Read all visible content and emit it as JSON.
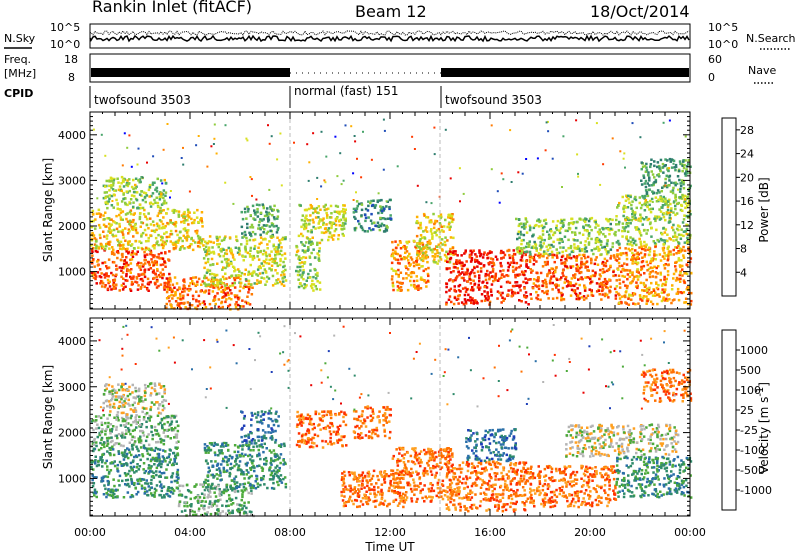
{
  "header": {
    "station": "Rankin Inlet (fitACF)",
    "beam": "Beam 12",
    "date": "18/Oct/2014"
  },
  "top_panels": {
    "nsky_label": "N.Sky",
    "nsearch_label": "N.Search",
    "count_ticks": [
      "10^5",
      "10^0"
    ],
    "freq_label": "Freq.",
    "freq_unit": "[MHz]",
    "freq_ticks": [
      "18",
      "8"
    ],
    "nave_label": "Nave",
    "nave_ticks": [
      "60",
      "0"
    ],
    "cpid_label": "CPID",
    "cpid_segments": [
      {
        "label": "twofsound 3503",
        "start": 0,
        "end": 8
      },
      {
        "label": "normal (fast) 151",
        "start": 8,
        "end": 14
      },
      {
        "label": "twofsound 3503",
        "start": 14,
        "end": 24
      }
    ]
  },
  "chart_data": [
    {
      "type": "heatmap",
      "name": "power",
      "ylabel": "Slant Range [km]",
      "xlabel": "",
      "x_range_hours": [
        0,
        24
      ],
      "ylim": [
        180,
        4500
      ],
      "y_ticks": [
        "1000",
        "2000",
        "3000",
        "4000"
      ],
      "colorbar": {
        "label": "Power [dB]",
        "ticks": [
          "4",
          "8",
          "12",
          "16",
          "20",
          "24",
          "28"
        ],
        "range": [
          0,
          30
        ],
        "colors": [
          "#0000ff",
          "#1f4db8",
          "#2e7d6e",
          "#48a56a",
          "#8fcc3c",
          "#d8e020",
          "#ffb000",
          "#ff7a00",
          "#ff3a00",
          "#e80000"
        ]
      },
      "regions": [
        {
          "t0": 0.0,
          "t1": 3.2,
          "r0": 600,
          "r1": 1500,
          "v": 26
        },
        {
          "t0": 0.0,
          "t1": 4.5,
          "r0": 1500,
          "r1": 2400,
          "v": 18
        },
        {
          "t0": 0.5,
          "t1": 3.0,
          "r0": 2400,
          "r1": 3100,
          "v": 14
        },
        {
          "t0": 3.0,
          "t1": 6.5,
          "r0": 200,
          "r1": 900,
          "v": 24
        },
        {
          "t0": 4.5,
          "t1": 7.8,
          "r0": 700,
          "r1": 1800,
          "v": 16
        },
        {
          "t0": 6.0,
          "t1": 7.5,
          "r0": 1800,
          "r1": 2500,
          "v": 10
        },
        {
          "t0": 8.2,
          "t1": 9.2,
          "r0": 600,
          "r1": 1700,
          "v": 14
        },
        {
          "t0": 8.3,
          "t1": 10.2,
          "r0": 1700,
          "r1": 2500,
          "v": 16
        },
        {
          "t0": 10.5,
          "t1": 12.0,
          "r0": 1900,
          "r1": 2600,
          "v": 8
        },
        {
          "t0": 12.0,
          "t1": 13.5,
          "r0": 600,
          "r1": 1700,
          "v": 22
        },
        {
          "t0": 13.0,
          "t1": 14.5,
          "r0": 1200,
          "r1": 2300,
          "v": 18
        },
        {
          "t0": 14.2,
          "t1": 17.5,
          "r0": 300,
          "r1": 1500,
          "v": 28
        },
        {
          "t0": 17.5,
          "t1": 21.0,
          "r0": 400,
          "r1": 1400,
          "v": 25
        },
        {
          "t0": 17.0,
          "t1": 21.0,
          "r0": 1400,
          "r1": 2200,
          "v": 13
        },
        {
          "t0": 21.0,
          "t1": 24.0,
          "r0": 300,
          "r1": 1600,
          "v": 22
        },
        {
          "t0": 21.0,
          "t1": 24.0,
          "r0": 1600,
          "r1": 2700,
          "v": 14
        },
        {
          "t0": 22.0,
          "t1": 24.0,
          "r0": 2700,
          "r1": 3500,
          "v": 10
        }
      ]
    },
    {
      "type": "heatmap",
      "name": "velocity",
      "ylabel": "Slant Range [km]",
      "xlabel": "Time UT",
      "x_range_hours": [
        0,
        24
      ],
      "x_ticks": [
        "00:00",
        "04:00",
        "08:00",
        "12:00",
        "16:00",
        "20:00",
        "00:00"
      ],
      "ylim": [
        180,
        4500
      ],
      "y_ticks": [
        "1000",
        "2000",
        "3000",
        "4000"
      ],
      "colorbar": {
        "label": "Velocity [m s",
        "label_exp": "-1",
        "label_close": "]",
        "ticks": [
          "1000",
          "500",
          "100",
          "25",
          "-25",
          "-100",
          "-500",
          "-1000"
        ],
        "colors": [
          "#1f3fb8",
          "#2a6fa8",
          "#2e8a6a",
          "#4caa3a",
          "#b4b4b4",
          "#ffa020",
          "#ff7000",
          "#ff3000",
          "#e80000"
        ]
      },
      "regions": [
        {
          "t0": 0.0,
          "t1": 3.5,
          "r0": 600,
          "r1": 1700,
          "v": 2
        },
        {
          "t0": 0.0,
          "t1": 3.5,
          "r0": 1700,
          "r1": 2400,
          "v": 3
        },
        {
          "t0": 0.5,
          "t1": 3.0,
          "r0": 2400,
          "r1": 3100,
          "v": 4
        },
        {
          "t0": 3.5,
          "t1": 6.5,
          "r0": 200,
          "r1": 900,
          "v": 3
        },
        {
          "t0": 4.5,
          "t1": 7.8,
          "r0": 800,
          "r1": 1800,
          "v": 2
        },
        {
          "t0": 6.0,
          "t1": 7.5,
          "r0": 1800,
          "r1": 2500,
          "v": 1
        },
        {
          "t0": 8.2,
          "t1": 10.2,
          "r0": 1700,
          "r1": 2500,
          "v": 6
        },
        {
          "t0": 10.5,
          "t1": 12.0,
          "r0": 1900,
          "r1": 2600,
          "v": 6
        },
        {
          "t0": 10.0,
          "t1": 12.5,
          "r0": 400,
          "r1": 1200,
          "v": 6
        },
        {
          "t0": 12.0,
          "t1": 14.5,
          "r0": 500,
          "r1": 1700,
          "v": 6
        },
        {
          "t0": 14.2,
          "t1": 17.5,
          "r0": 300,
          "r1": 1400,
          "v": 6
        },
        {
          "t0": 15.0,
          "t1": 17.0,
          "r0": 1400,
          "r1": 2100,
          "v": 1
        },
        {
          "t0": 17.5,
          "t1": 21.0,
          "r0": 400,
          "r1": 1300,
          "v": 6
        },
        {
          "t0": 19.0,
          "t1": 23.5,
          "r0": 1500,
          "r1": 2200,
          "v": 4
        },
        {
          "t0": 21.0,
          "t1": 24.0,
          "r0": 600,
          "r1": 1500,
          "v": 2
        },
        {
          "t0": 22.0,
          "t1": 24.0,
          "r0": 2700,
          "r1": 3400,
          "v": 6
        }
      ]
    }
  ]
}
